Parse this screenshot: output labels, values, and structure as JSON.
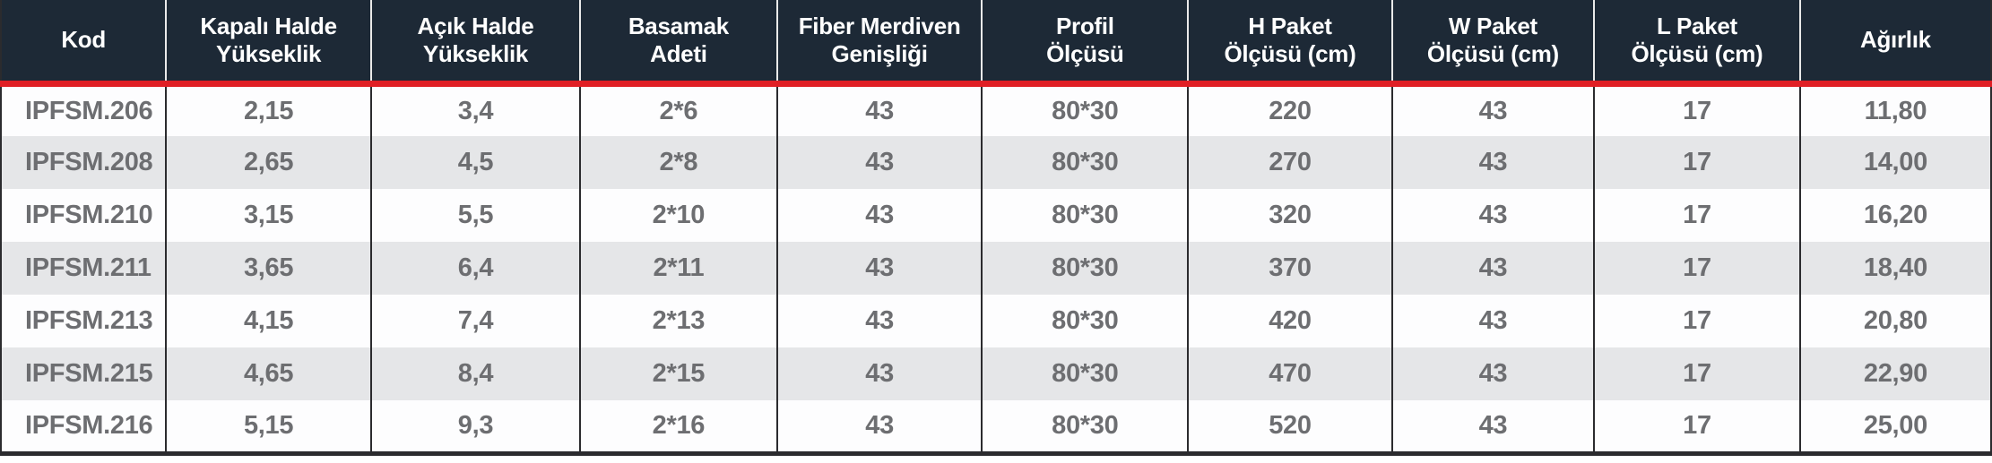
{
  "table": {
    "columns": [
      {
        "label": "Kod"
      },
      {
        "label": "Kapalı Halde\nYükseklik"
      },
      {
        "label": "Açık Halde\nYükseklik"
      },
      {
        "label": "Basamak\nAdeti"
      },
      {
        "label": "Fiber Merdiven\nGenişliği"
      },
      {
        "label": "Profil\nÖlçüsü"
      },
      {
        "label": "H Paket\nÖlçüsü (cm)"
      },
      {
        "label": "W Paket\nÖlçüsü (cm)"
      },
      {
        "label": "L Paket\nÖlçüsü (cm)"
      },
      {
        "label": "Ağırlık"
      }
    ],
    "rows": [
      {
        "cells": [
          "IPFSM.206",
          "2,15",
          "3,4",
          "2*6",
          "43",
          "80*30",
          "220",
          "43",
          "17",
          "11,80"
        ]
      },
      {
        "cells": [
          "IPFSM.208",
          "2,65",
          "4,5",
          "2*8",
          "43",
          "80*30",
          "270",
          "43",
          "17",
          "14,00"
        ]
      },
      {
        "cells": [
          "IPFSM.210",
          "3,15",
          "5,5",
          "2*10",
          "43",
          "80*30",
          "320",
          "43",
          "17",
          "16,20"
        ]
      },
      {
        "cells": [
          "IPFSM.211",
          "3,65",
          "6,4",
          "2*11",
          "43",
          "80*30",
          "370",
          "43",
          "17",
          "18,40"
        ]
      },
      {
        "cells": [
          "IPFSM.213",
          "4,15",
          "7,4",
          "2*13",
          "43",
          "80*30",
          "420",
          "43",
          "17",
          "20,80"
        ]
      },
      {
        "cells": [
          "IPFSM.215",
          "4,65",
          "8,4",
          "2*15",
          "43",
          "80*30",
          "470",
          "43",
          "17",
          "22,90"
        ]
      },
      {
        "cells": [
          "IPFSM.216",
          "5,15",
          "9,3",
          "2*16",
          "43",
          "80*30",
          "520",
          "43",
          "17",
          "25,00"
        ]
      }
    ],
    "column_widths_percent": [
      8.3,
      10.3,
      10.5,
      9.9,
      10.3,
      10.35,
      10.25,
      10.15,
      10.35,
      9.6
    ]
  },
  "colors": {
    "header_bg": "#1d2936",
    "accent_red": "#e01f25",
    "row_alt_bg": "#e5e6e8",
    "row_bg": "#fdfdfe",
    "body_text": "#6d6e71",
    "border_dark": "#2b2b2e"
  }
}
